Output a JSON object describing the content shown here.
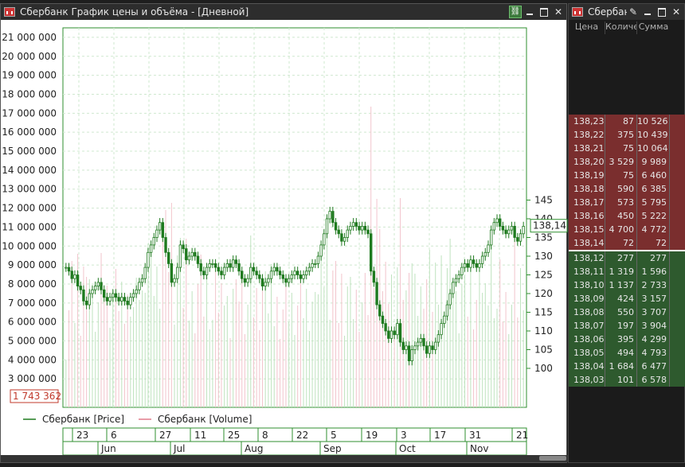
{
  "chart_window": {
    "title": "Сбербанк График цены и объёма - [Дневной]"
  },
  "book_window": {
    "title": "Сбербанк",
    "columns": [
      "Цена",
      "Количе",
      "Сумма"
    ],
    "asks": [
      [
        "138,23",
        "87",
        "10 526"
      ],
      [
        "138,22",
        "375",
        "10 439"
      ],
      [
        "138,21",
        "75",
        "10 064"
      ],
      [
        "138,20",
        "3 529",
        "9 989"
      ],
      [
        "138,19",
        "75",
        "6 460"
      ],
      [
        "138,18",
        "590",
        "6 385"
      ],
      [
        "138,17",
        "573",
        "5 795"
      ],
      [
        "138,16",
        "450",
        "5 222"
      ],
      [
        "138,15",
        "4 700",
        "4 772"
      ],
      [
        "138,14",
        "72",
        "72"
      ]
    ],
    "bids": [
      [
        "138,12",
        "277",
        "277"
      ],
      [
        "138,11",
        "1 319",
        "1 596"
      ],
      [
        "138,10",
        "1 137",
        "2 733"
      ],
      [
        "138,09",
        "424",
        "3 157"
      ],
      [
        "138,08",
        "550",
        "3 707"
      ],
      [
        "138,07",
        "197",
        "3 904"
      ],
      [
        "138,06",
        "395",
        "4 299"
      ],
      [
        "138,05",
        "494",
        "4 793"
      ],
      [
        "138,04",
        "1 684",
        "6 477"
      ],
      [
        "138,03",
        "101",
        "6 578"
      ]
    ]
  },
  "chart_data": {
    "type": "line",
    "colors": {
      "price": "#1f7a1f",
      "volume": "#e07a8a",
      "grid": "#cfe8cf"
    },
    "left_axis_ticks": [
      "21 000 000",
      "20 000 000",
      "19 000 000",
      "18 000 000",
      "17 000 000",
      "16 000 000",
      "15 000 000",
      "14 000 000",
      "13 000 000",
      "12 000 000",
      "11 000 000",
      "10 000 000",
      "9 000 000",
      "8 000 000",
      "7 000 000",
      "6 000 000",
      "5 000 000",
      "4 000 000",
      "3 000 000"
    ],
    "left_axis_values": [
      21000000,
      20000000,
      19000000,
      18000000,
      17000000,
      16000000,
      15000000,
      14000000,
      13000000,
      12000000,
      11000000,
      10000000,
      9000000,
      8000000,
      7000000,
      6000000,
      5000000,
      4000000,
      3000000
    ],
    "right_axis_ticks": [
      "145",
      "140",
      "135",
      "130",
      "125",
      "120",
      "115",
      "110",
      "105",
      "100"
    ],
    "right_axis_values": [
      145,
      140,
      135,
      130,
      125,
      120,
      115,
      110,
      105,
      100
    ],
    "last_volume_label": "1 743 362",
    "last_price_label": "138,14",
    "legend": [
      {
        "name": "Сбербанк [Price]",
        "color": "#1f7a1f"
      },
      {
        "name": "Сбербанк [Volume]",
        "color": "#e07a8a"
      }
    ],
    "day_labels": [
      "23",
      "6",
      "27",
      "11",
      "25",
      "8",
      "22",
      "5",
      "19",
      "3",
      "17",
      "31",
      "21"
    ],
    "month_labels": [
      "Jun",
      "Jul",
      "Aug",
      "Sep",
      "Oct",
      "Nov"
    ],
    "price_close": [
      127,
      126,
      124,
      125,
      122,
      121,
      118,
      117,
      120,
      121,
      122,
      123,
      121,
      119,
      118,
      119,
      120,
      119,
      118,
      119,
      118,
      117,
      119,
      120,
      121,
      123,
      124,
      127,
      131,
      133,
      135,
      137,
      139,
      135,
      131,
      128,
      123,
      124,
      127,
      133,
      132,
      129,
      130,
      131,
      130,
      128,
      126,
      125,
      127,
      128,
      128,
      127,
      126,
      125,
      127,
      128,
      127,
      129,
      128,
      126,
      124,
      123,
      124,
      127,
      126,
      125,
      124,
      122,
      123,
      124,
      126,
      127,
      126,
      125,
      124,
      123,
      124,
      125,
      126,
      125,
      124,
      125,
      126,
      127,
      128,
      128,
      130,
      133,
      136,
      140,
      142,
      139,
      137,
      136,
      134,
      135,
      137,
      138,
      139,
      138,
      137,
      138,
      137,
      136,
      126,
      123,
      117,
      114,
      112,
      110,
      108,
      110,
      109,
      112,
      107,
      105,
      106,
      102,
      105,
      106,
      107,
      108,
      106,
      104,
      106,
      105,
      107,
      109,
      112,
      114,
      117,
      120,
      123,
      124,
      125,
      127,
      128,
      127,
      129,
      128,
      127,
      128,
      130,
      131,
      133,
      137,
      139,
      140,
      138,
      137,
      136,
      137,
      138,
      135,
      134,
      136,
      138
    ]
  }
}
